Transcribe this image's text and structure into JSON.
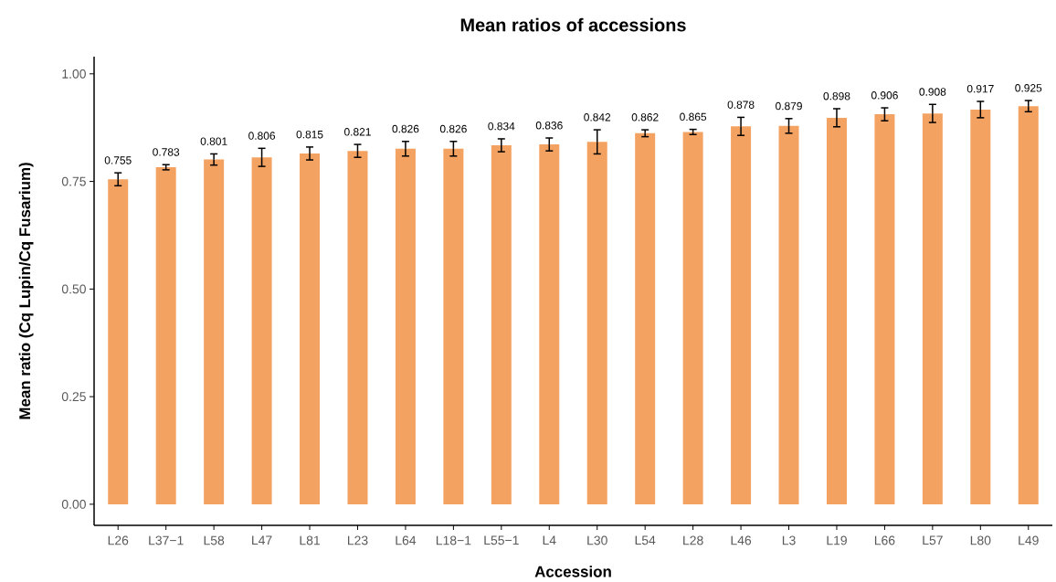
{
  "chart_data": {
    "type": "bar",
    "title": "Mean ratios of accessions",
    "xlabel": "Accession",
    "ylabel": "Mean ratio (Cq Lupin/Cq Fusarium)",
    "categories": [
      "L26",
      "L37−1",
      "L58",
      "L47",
      "L81",
      "L23",
      "L64",
      "L18−1",
      "L55−1",
      "L4",
      "L30",
      "L54",
      "L28",
      "L46",
      "L3",
      "L19",
      "L66",
      "L57",
      "L80",
      "L49"
    ],
    "values": [
      0.755,
      0.783,
      0.801,
      0.806,
      0.815,
      0.821,
      0.826,
      0.826,
      0.834,
      0.836,
      0.842,
      0.862,
      0.865,
      0.878,
      0.879,
      0.898,
      0.906,
      0.908,
      0.917,
      0.925
    ],
    "errors": [
      0.015,
      0.006,
      0.013,
      0.021,
      0.015,
      0.015,
      0.017,
      0.017,
      0.015,
      0.015,
      0.028,
      0.008,
      0.006,
      0.021,
      0.017,
      0.021,
      0.015,
      0.021,
      0.019,
      0.013
    ],
    "color": "#f4a261",
    "data_labels": true,
    "grid": false,
    "ylim": [
      -0.049,
      1.04
    ],
    "yticks": [
      {
        "value": 0,
        "label": "0.00"
      },
      {
        "value": 0.25,
        "label": "0.25"
      },
      {
        "value": 0.5,
        "label": "0.50"
      },
      {
        "value": 0.75,
        "label": "0.75"
      },
      {
        "value": 1,
        "label": "1.00"
      }
    ]
  }
}
